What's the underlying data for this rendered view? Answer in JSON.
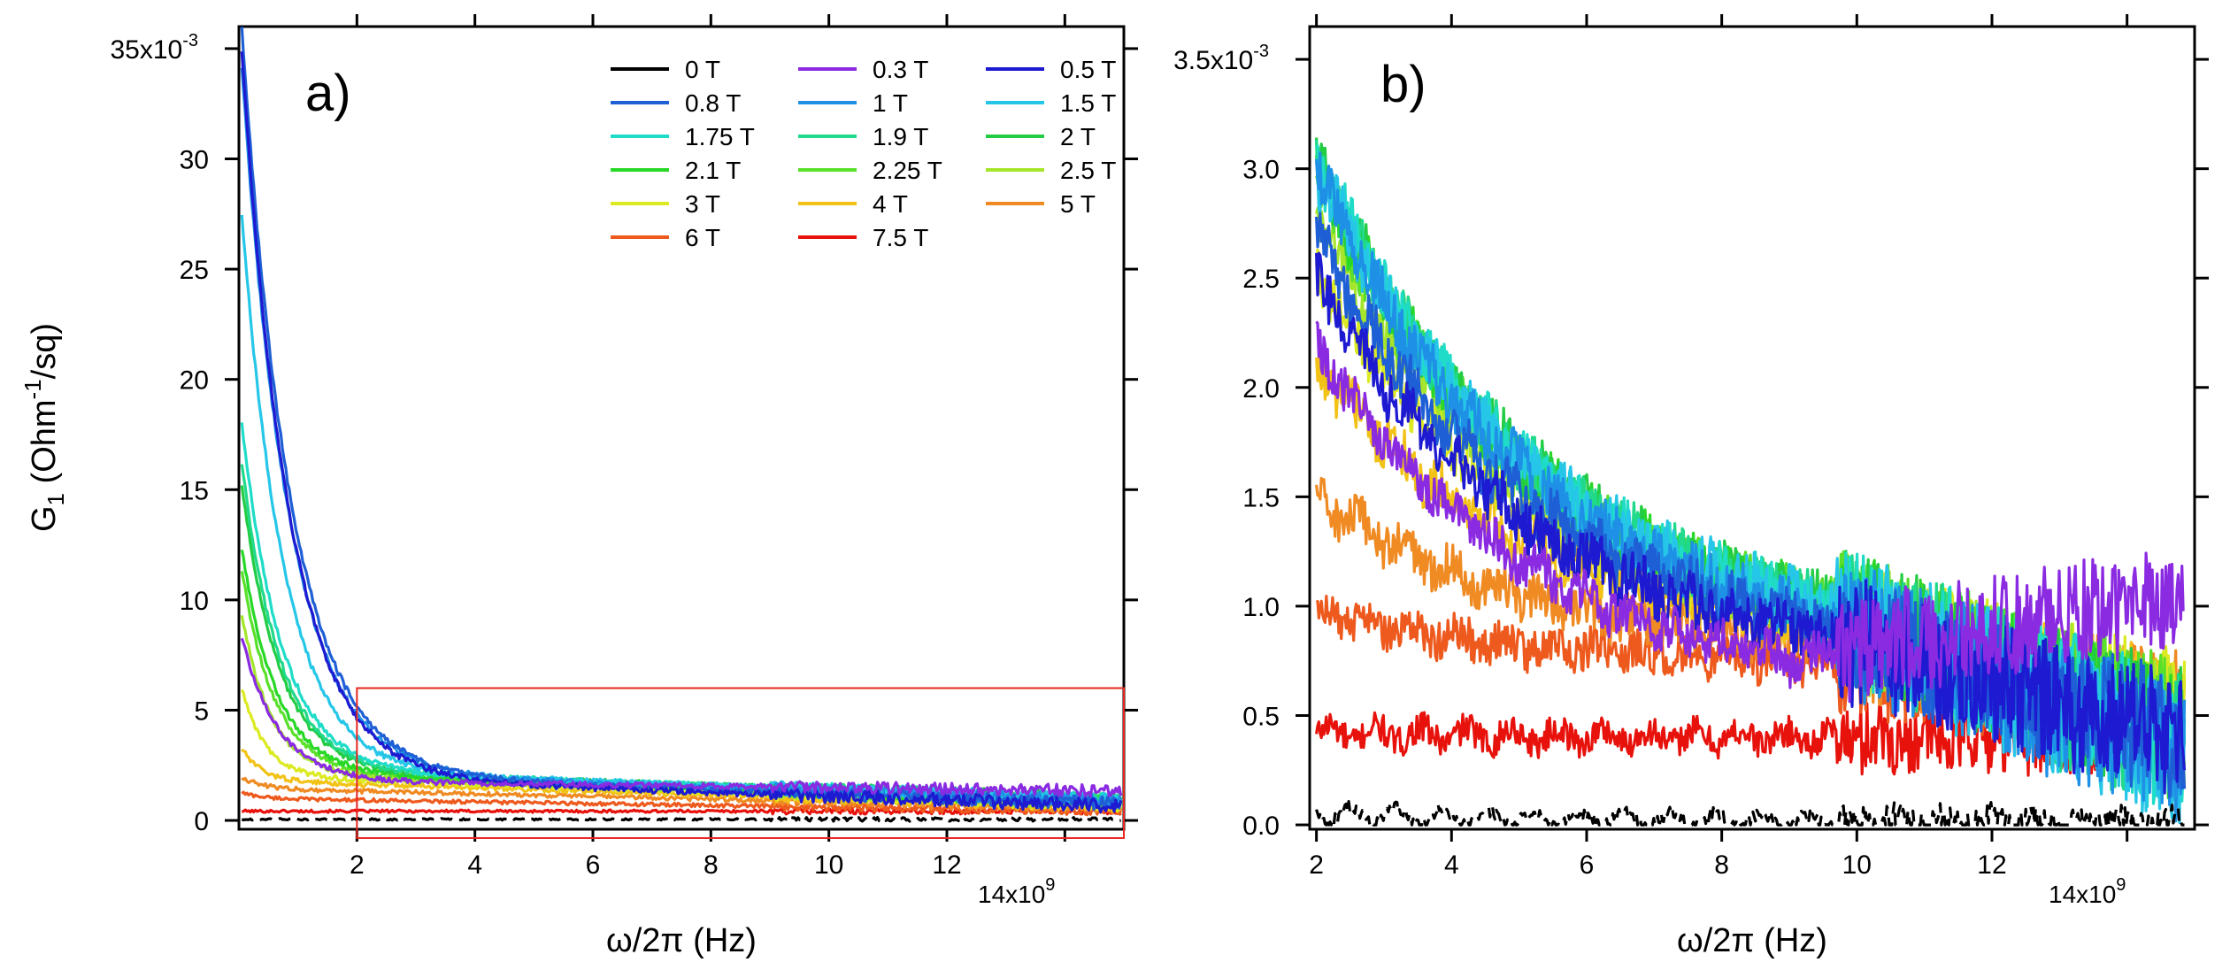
{
  "chart_data": [
    {
      "panel": "a",
      "type": "line",
      "panel_label": "a)",
      "xlabel": "ω/2π (Hz)",
      "ylabel": "G1 (Ohm-1/sq)",
      "ylabel_parts": {
        "main": "G",
        "sub": "1",
        "open": " (Ohm",
        "sup": "-1",
        "close": "/sq)"
      },
      "xlim": [
        0,
        15
      ],
      "ylim": [
        -0.4,
        36
      ],
      "x_ticks": [
        2,
        4,
        6,
        8,
        10,
        12
      ],
      "x_tick_labels": [
        "2",
        "4",
        "6",
        "8",
        "10",
        "12"
      ],
      "x_multiplier_label": "14x10",
      "x_multiplier_exp": "9",
      "y_ticks": [
        0,
        5,
        10,
        15,
        20,
        25,
        30,
        35
      ],
      "y_tick_labels": [
        "0",
        "5",
        "10",
        "15",
        "20",
        "25",
        "30",
        "35x10"
      ],
      "y_multiplier_exp": "-3",
      "legend_position": "top-right",
      "inset_box": {
        "x_range": [
          2,
          15
        ],
        "y_range": [
          -0.8,
          6.0
        ],
        "color": "#e8261e"
      },
      "series_curves": [
        {
          "name": "0 T",
          "color": "#000000",
          "A": 0.0,
          "k": 1.5,
          "base": 0.05,
          "slope": 0.0,
          "noise": 0.04,
          "dashed": true
        },
        {
          "name": "0.3 T",
          "color": "#8a2be2",
          "A": 7,
          "k": 1.6,
          "base": 1.8,
          "slope": -0.03,
          "noise": 0.12
        },
        {
          "name": "0.5 T",
          "color": "#1d1ad1",
          "A": 35,
          "k": 1.25,
          "base": 2.0,
          "slope": -0.09,
          "noise": 0.14
        },
        {
          "name": "0.8 T",
          "color": "#1f5fd6",
          "A": 36,
          "k": 1.2,
          "base": 2.1,
          "slope": -0.09,
          "noise": 0.14
        },
        {
          "name": "1 T",
          "color": "#1e90e6",
          "A": 34,
          "k": 1.25,
          "base": 2.2,
          "slope": -0.09,
          "noise": 0.14
        },
        {
          "name": "1.5 T",
          "color": "#26c6e8",
          "A": 27,
          "k": 1.4,
          "base": 2.3,
          "slope": -0.09,
          "noise": 0.14
        },
        {
          "name": "1.75 T",
          "color": "#1fdcc8",
          "A": 17,
          "k": 1.5,
          "base": 2.3,
          "slope": -0.09,
          "noise": 0.13
        },
        {
          "name": "1.9 T",
          "color": "#20d98a",
          "A": 15,
          "k": 1.55,
          "base": 2.3,
          "slope": -0.09,
          "noise": 0.13
        },
        {
          "name": "2 T",
          "color": "#22cc44",
          "A": 14,
          "k": 1.6,
          "base": 2.3,
          "slope": -0.09,
          "noise": 0.13
        },
        {
          "name": "2.1 T",
          "color": "#27d827",
          "A": 11,
          "k": 1.7,
          "base": 2.2,
          "slope": -0.09,
          "noise": 0.12
        },
        {
          "name": "2.25 T",
          "color": "#5ae02a",
          "A": 10,
          "k": 1.8,
          "base": 2.2,
          "slope": -0.09,
          "noise": 0.12
        },
        {
          "name": "2.5 T",
          "color": "#a6e62a",
          "A": 8,
          "k": 2.0,
          "base": 2.1,
          "slope": -0.09,
          "noise": 0.12
        },
        {
          "name": "3 T",
          "color": "#dcea22",
          "A": 4.5,
          "k": 2.5,
          "base": 2.0,
          "slope": -0.09,
          "noise": 0.12
        },
        {
          "name": "4 T",
          "color": "#f2c216",
          "A": 1.7,
          "k": 3.0,
          "base": 1.8,
          "slope": -0.08,
          "noise": 0.11
        },
        {
          "name": "5 T",
          "color": "#f08a22",
          "A": 0.6,
          "k": 3.0,
          "base": 1.45,
          "slope": -0.06,
          "noise": 0.1
        },
        {
          "name": "6 T",
          "color": "#ee5a1e",
          "A": 0.3,
          "k": 3.0,
          "base": 1.0,
          "slope": -0.04,
          "noise": 0.08
        },
        {
          "name": "7.5 T",
          "color": "#e8120c",
          "A": 0.0,
          "k": 3.0,
          "base": 0.42,
          "slope": 0.0,
          "noise": 0.06
        }
      ]
    },
    {
      "panel": "b",
      "type": "line",
      "panel_label": "b)",
      "xlabel": "ω/2π (Hz)",
      "ylabel": "",
      "xlim": [
        1.9,
        15.0
      ],
      "ylim": [
        -0.02,
        3.65
      ],
      "x_ticks": [
        2,
        4,
        6,
        8,
        10,
        12
      ],
      "x_tick_labels": [
        "2",
        "4",
        "6",
        "8",
        "10",
        "12"
      ],
      "x_multiplier_label": "14x10",
      "x_multiplier_exp": "9",
      "y_ticks": [
        0.0,
        0.5,
        1.0,
        1.5,
        2.0,
        2.5,
        3.0,
        3.5
      ],
      "y_tick_labels": [
        "0.0",
        "0.5",
        "1.0",
        "1.5",
        "2.0",
        "2.5",
        "3.0",
        "3.5x10"
      ],
      "y_multiplier_exp": "-3",
      "series_curves": [
        {
          "name": "0 T",
          "color": "#000000",
          "start": 0.05,
          "mid": 0.02,
          "end": 0.0,
          "noise": 0.03,
          "dashed": true
        },
        {
          "name": "0.3 T",
          "color": "#8a2be2",
          "start": 2.2,
          "mid": 0.75,
          "end": 1.05,
          "noise": 0.1
        },
        {
          "name": "0.5 T",
          "color": "#1d1ad1",
          "start": 2.5,
          "mid": 0.9,
          "end": 0.4,
          "noise": 0.12
        },
        {
          "name": "0.8 T",
          "color": "#1f5fd6",
          "start": 2.7,
          "mid": 0.95,
          "end": 0.4,
          "noise": 0.12
        },
        {
          "name": "1 T",
          "color": "#1e90e6",
          "start": 3.0,
          "mid": 1.0,
          "end": 0.3,
          "noise": 0.13
        },
        {
          "name": "1.5 T",
          "color": "#26c6e8",
          "start": 3.0,
          "mid": 1.05,
          "end": 0.3,
          "noise": 0.13
        },
        {
          "name": "1.75 T",
          "color": "#1fdcc8",
          "start": 3.05,
          "mid": 1.05,
          "end": 0.35,
          "noise": 0.13
        },
        {
          "name": "1.9 T",
          "color": "#20d98a",
          "start": 3.05,
          "mid": 1.05,
          "end": 0.35,
          "noise": 0.13
        },
        {
          "name": "2 T",
          "color": "#22cc44",
          "start": 3.05,
          "mid": 1.05,
          "end": 0.4,
          "noise": 0.13
        },
        {
          "name": "2.1 T",
          "color": "#27d827",
          "start": 3.0,
          "mid": 1.05,
          "end": 0.4,
          "noise": 0.12
        },
        {
          "name": "2.25 T",
          "color": "#5ae02a",
          "start": 2.95,
          "mid": 1.05,
          "end": 0.45,
          "noise": 0.12
        },
        {
          "name": "2.5 T",
          "color": "#a6e62a",
          "start": 2.8,
          "mid": 1.0,
          "end": 0.45,
          "noise": 0.12
        },
        {
          "name": "3 T",
          "color": "#dcea22",
          "start": 2.55,
          "mid": 1.0,
          "end": 0.5,
          "noise": 0.12
        },
        {
          "name": "4 T",
          "color": "#f2c216",
          "start": 2.1,
          "mid": 0.95,
          "end": 0.5,
          "noise": 0.11
        },
        {
          "name": "5 T",
          "color": "#f08a22",
          "start": 1.5,
          "mid": 0.85,
          "end": 0.55,
          "noise": 0.1
        },
        {
          "name": "6 T",
          "color": "#ee5a1e",
          "start": 0.98,
          "mid": 0.75,
          "end": 0.5,
          "noise": 0.09
        },
        {
          "name": "7.5 T",
          "color": "#e8120c",
          "start": 0.42,
          "mid": 0.4,
          "end": 0.4,
          "noise": 0.07
        }
      ]
    }
  ],
  "legend": {
    "entries": [
      "0 T",
      "0.3 T",
      "0.5 T",
      "0.8 T",
      "1 T",
      "1.5 T",
      "1.75 T",
      "1.9 T",
      "2 T",
      "2.1 T",
      "2.25 T",
      "2.5 T",
      "3 T",
      "4 T",
      "5 T",
      "6 T",
      "7.5 T"
    ],
    "colors": [
      "#000000",
      "#8a2be2",
      "#1d1ad1",
      "#1f5fd6",
      "#1e90e6",
      "#26c6e8",
      "#1fdcc8",
      "#20d98a",
      "#22cc44",
      "#27d827",
      "#5ae02a",
      "#a6e62a",
      "#dcea22",
      "#f2c216",
      "#f08a22",
      "#ee5a1e",
      "#e8120c"
    ],
    "columns": 3
  }
}
